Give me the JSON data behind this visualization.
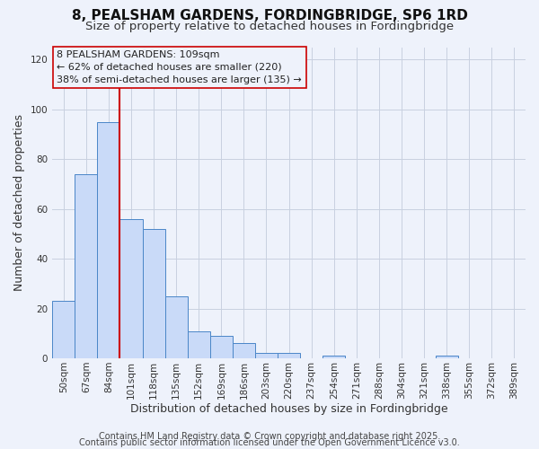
{
  "title": "8, PEALSHAM GARDENS, FORDINGBRIDGE, SP6 1RD",
  "subtitle": "Size of property relative to detached houses in Fordingbridge",
  "xlabel": "Distribution of detached houses by size in Fordingbridge",
  "ylabel": "Number of detached properties",
  "bar_labels": [
    "50sqm",
    "67sqm",
    "84sqm",
    "101sqm",
    "118sqm",
    "135sqm",
    "152sqm",
    "169sqm",
    "186sqm",
    "203sqm",
    "220sqm",
    "237sqm",
    "254sqm",
    "271sqm",
    "288sqm",
    "304sqm",
    "321sqm",
    "338sqm",
    "355sqm",
    "372sqm",
    "389sqm"
  ],
  "bar_values": [
    23,
    74,
    95,
    56,
    52,
    25,
    11,
    9,
    6,
    2,
    2,
    0,
    1,
    0,
    0,
    0,
    0,
    1,
    0,
    0,
    0
  ],
  "bar_color": "#c9daf8",
  "bar_edge_color": "#4a86c8",
  "property_line_color": "#cc0000",
  "property_line_bar_index": 3,
  "ylim_max": 125,
  "yticks": [
    0,
    20,
    40,
    60,
    80,
    100,
    120
  ],
  "annotation_title": "8 PEALSHAM GARDENS: 109sqm",
  "annotation_line1": "← 62% of detached houses are smaller (220)",
  "annotation_line2": "38% of semi-detached houses are larger (135) →",
  "footer1": "Contains HM Land Registry data © Crown copyright and database right 2025.",
  "footer2": "Contains public sector information licensed under the Open Government Licence v3.0.",
  "bg_color": "#eef2fb",
  "grid_color": "#c8d0e0",
  "title_fontsize": 11,
  "subtitle_fontsize": 9.5,
  "axis_label_fontsize": 9,
  "tick_fontsize": 7.5,
  "annotation_fontsize": 8,
  "footer_fontsize": 7
}
